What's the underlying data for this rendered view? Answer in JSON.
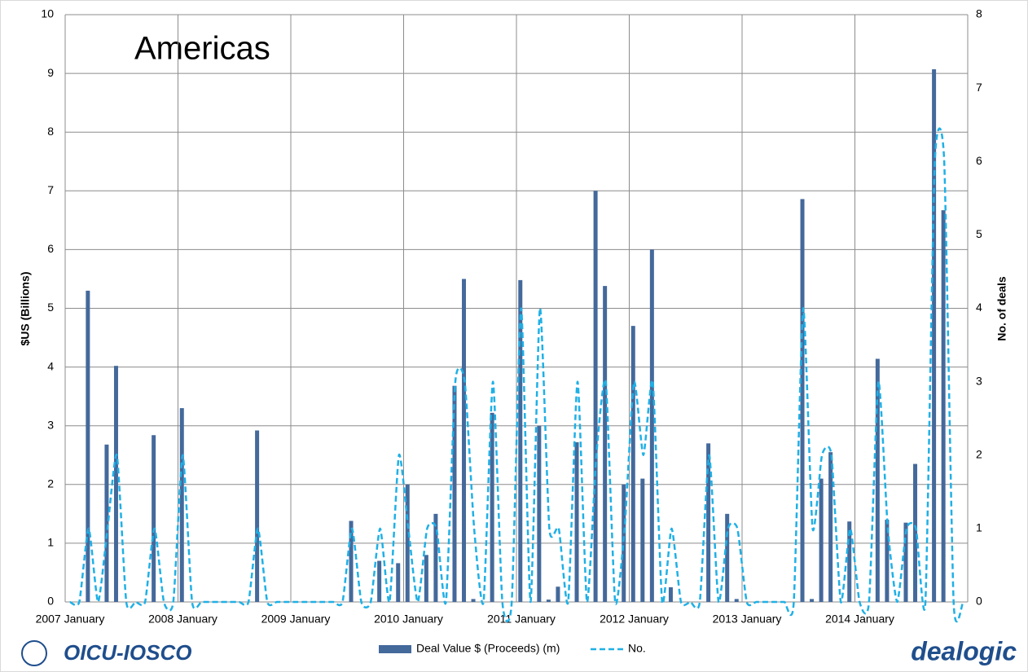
{
  "chart_data": {
    "type": "bar-line",
    "title": "Americas",
    "y_label": "$US (Billions)",
    "y2_label": "No. of deals",
    "categories": [
      "2007 January",
      null,
      null,
      null,
      null,
      null,
      null,
      null,
      null,
      null,
      null,
      null,
      "2008 January",
      null,
      null,
      null,
      null,
      null,
      null,
      null,
      null,
      null,
      null,
      null,
      "2009 January",
      null,
      null,
      null,
      null,
      null,
      null,
      null,
      null,
      null,
      null,
      null,
      "2010 January",
      null,
      null,
      null,
      null,
      null,
      null,
      null,
      null,
      null,
      null,
      null,
      "2011 January",
      null,
      null,
      null,
      null,
      null,
      null,
      null,
      null,
      null,
      null,
      null,
      "2012 January",
      null,
      null,
      null,
      null,
      null,
      null,
      null,
      null,
      null,
      null,
      null,
      "2013 January",
      null,
      null,
      null,
      null,
      null,
      null,
      null,
      null,
      null,
      null,
      null,
      "2014 January",
      null,
      null,
      null,
      null,
      null,
      null,
      null,
      null,
      null,
      null,
      null
    ],
    "series": [
      {
        "name": "Deal Value $ (Proceeds) (m)",
        "type": "bar",
        "color": "#44699b",
        "values": [
          0,
          0,
          5.3,
          0,
          2.68,
          4.02,
          0,
          0,
          0,
          2.84,
          0,
          0,
          3.3,
          0,
          0,
          0,
          0,
          0,
          0,
          0,
          2.92,
          0,
          0,
          0,
          0,
          0,
          0,
          0,
          0,
          0,
          1.38,
          0,
          0,
          0.7,
          0,
          0.66,
          2.0,
          0,
          0.8,
          1.5,
          0,
          3.68,
          5.5,
          0.05,
          0,
          3.22,
          0,
          0,
          5.48,
          0,
          3.0,
          0.04,
          0.26,
          0,
          2.72,
          0,
          7.0,
          5.38,
          0,
          2.0,
          4.7,
          2.1,
          6.0,
          0,
          0.25,
          0,
          0,
          0,
          2.7,
          0,
          1.5,
          0.05,
          0,
          0,
          0,
          0,
          0,
          0,
          6.86,
          0.05,
          2.1,
          2.55,
          0,
          1.37,
          0,
          0,
          4.14,
          1.4,
          0,
          1.35,
          2.35,
          0,
          9.07,
          6.67,
          0,
          0
        ]
      },
      {
        "name": "No.",
        "type": "line",
        "axis": "y2",
        "color": "#1fb0e6",
        "values": [
          0,
          0,
          1,
          0,
          1,
          2,
          0,
          0,
          0,
          1,
          0,
          0,
          2,
          0,
          0,
          0,
          0,
          0,
          0,
          0,
          1,
          0,
          0,
          0,
          0,
          0,
          0,
          0,
          0,
          0,
          1,
          0,
          0,
          1,
          0,
          2,
          1,
          0,
          1,
          1,
          0,
          3,
          3,
          1,
          0,
          3,
          0,
          0,
          4,
          0,
          4,
          1,
          1,
          0,
          3,
          0,
          2,
          3,
          0,
          1,
          3,
          2,
          3,
          0,
          1,
          0,
          0,
          0,
          2,
          0,
          1,
          1,
          0,
          0,
          0,
          0,
          0,
          0,
          4,
          1,
          2,
          2,
          0,
          1,
          0,
          0,
          3,
          1,
          0,
          1,
          1,
          0,
          6,
          6,
          0,
          0
        ]
      }
    ],
    "ylim": [
      0,
      10
    ],
    "yticks": [
      0,
      1,
      2,
      3,
      4,
      5,
      6,
      7,
      8,
      9,
      10
    ],
    "y2lim": [
      0,
      8
    ],
    "y2ticks": [
      0,
      1,
      2,
      3,
      4,
      5,
      6,
      7,
      8
    ],
    "grid": true,
    "legend": "bottom"
  },
  "logos": {
    "left": "OICU-IOSCO",
    "right": "dealogic"
  }
}
